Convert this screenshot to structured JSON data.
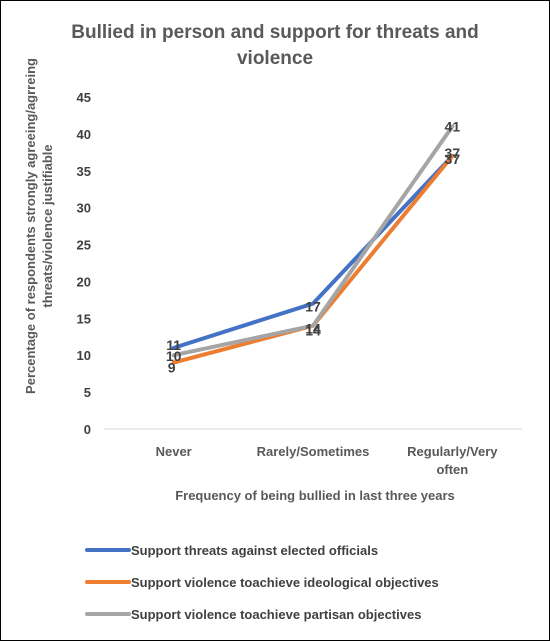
{
  "chart_data": {
    "type": "line",
    "title": "Bullied in person and support for threats and violence",
    "title_lines": [
      "Bullied in person and support for threats and",
      "violence"
    ],
    "xlabel": "Frequency of  being bullied in last three years",
    "ylabel": "Percentage of respondents strongly agreeing/agrreing threats/violence justifiable",
    "ylabel_lines": [
      "Percentage of respondents strongly agreeing/agrreing",
      "threats/violence justifiable"
    ],
    "categories": [
      "Never",
      "Rarely/Sometimes",
      "Regularly/Very often"
    ],
    "category_lines": [
      [
        "Never"
      ],
      [
        "Rarely/Sometimes"
      ],
      [
        "Regularly/Very",
        "often"
      ]
    ],
    "ylim": [
      0,
      45
    ],
    "yticks": [
      "0",
      "5",
      "10",
      "15",
      "20",
      "25",
      "30",
      "35",
      "40",
      "45"
    ],
    "grid": false,
    "legend_position": "bottom",
    "series": [
      {
        "name": "Support threats against elected officials",
        "values": [
          11,
          17,
          37
        ],
        "color": "#4472C4"
      },
      {
        "name": "Support violence toachieve ideological objectives",
        "values": [
          9,
          14,
          37
        ],
        "color": "#ED7D31"
      },
      {
        "name": "Support violence toachieve partisan objectives",
        "values": [
          10,
          14,
          41
        ],
        "color": "#A5A5A5"
      }
    ]
  }
}
